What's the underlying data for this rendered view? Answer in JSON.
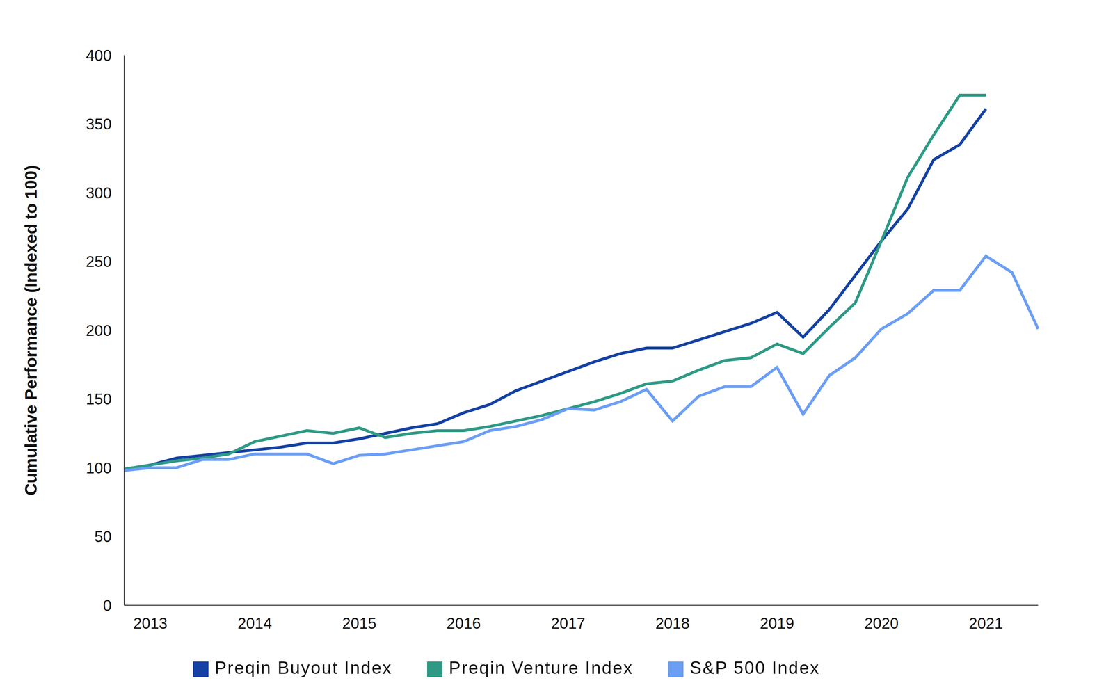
{
  "chart_data": {
    "type": "line",
    "y_label": "Cumulative Performance (Indexed to 100)",
    "categories": [
      null,
      "2013",
      null,
      null,
      null,
      "2014",
      null,
      null,
      null,
      "2015",
      null,
      null,
      null,
      "2016",
      null,
      null,
      null,
      "2017",
      null,
      null,
      null,
      "2018",
      null,
      null,
      null,
      "2019",
      null,
      null,
      null,
      "2020",
      null,
      null,
      null,
      "2021",
      null,
      null
    ],
    "series": [
      {
        "name": "Preqin Buyout Index",
        "color": "#1441a3",
        "values": [
          99,
          102,
          107,
          109,
          111,
          113,
          115,
          118,
          118,
          121,
          125,
          129,
          132,
          140,
          146,
          156,
          163,
          170,
          177,
          183,
          187,
          187,
          193,
          199,
          205,
          213,
          195,
          215,
          240,
          265,
          288,
          324,
          335,
          361,
          null,
          null
        ]
      },
      {
        "name": "Preqin Venture Index",
        "color": "#2e9a85",
        "values": [
          99,
          102,
          105,
          107,
          110,
          119,
          123,
          127,
          125,
          129,
          122,
          125,
          127,
          127,
          130,
          134,
          138,
          143,
          148,
          154,
          161,
          163,
          171,
          178,
          180,
          190,
          183,
          202,
          220,
          265,
          311,
          342,
          371,
          371,
          null,
          null
        ]
      },
      {
        "name": "S&P 500 Index",
        "color": "#6b9ef5",
        "values": [
          98,
          100,
          100,
          106,
          106,
          110,
          110,
          110,
          103,
          109,
          110,
          113,
          116,
          119,
          127,
          130,
          135,
          143,
          142,
          148,
          157,
          134,
          152,
          159,
          159,
          173,
          139,
          167,
          180,
          201,
          212,
          229,
          229,
          254,
          242,
          201
        ]
      }
    ],
    "ylim": [
      0,
      400
    ],
    "yticks": [
      0,
      50,
      100,
      150,
      200,
      250,
      300,
      350,
      400
    ],
    "grid": false,
    "legend": "bottom"
  }
}
